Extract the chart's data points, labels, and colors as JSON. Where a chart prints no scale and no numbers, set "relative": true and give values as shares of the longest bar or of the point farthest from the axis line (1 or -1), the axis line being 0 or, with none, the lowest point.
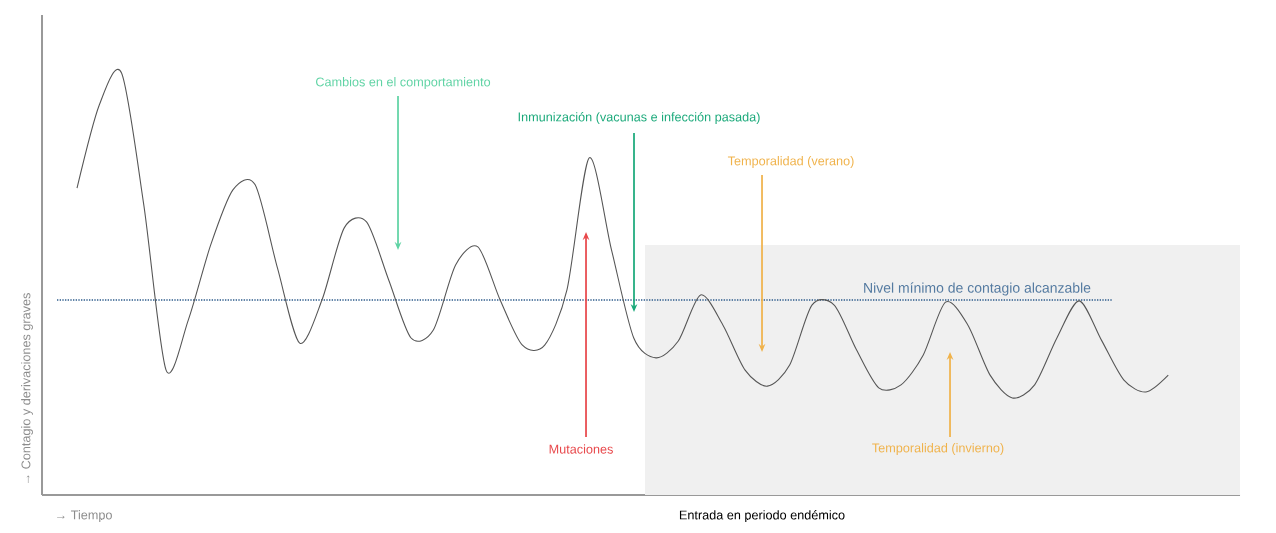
{
  "chart_data": {
    "type": "line",
    "relative": true,
    "categories": [
      null,
      null,
      null,
      null,
      null,
      null,
      null,
      null,
      null,
      null,
      null,
      null,
      null,
      null,
      null,
      null,
      null,
      null,
      null,
      null,
      null,
      null,
      null,
      null,
      null,
      null,
      null,
      null,
      null,
      null,
      null,
      null,
      null,
      null,
      null,
      null,
      null,
      null,
      null,
      null,
      null,
      null,
      null,
      null,
      null,
      null,
      null,
      null,
      null,
      null
    ],
    "values": [
      0.727,
      0.924,
      1.0,
      0.687,
      0.296,
      0.415,
      0.592,
      0.723,
      0.735,
      0.538,
      0.36,
      0.462,
      0.633,
      0.647,
      0.509,
      0.372,
      0.391,
      0.545,
      0.588,
      0.462,
      0.355,
      0.355,
      0.486,
      0.799,
      0.581,
      0.372,
      0.325,
      0.365,
      0.474,
      0.403,
      0.296,
      0.258,
      0.308,
      0.45,
      0.45,
      0.344,
      0.254,
      0.261,
      0.332,
      0.457,
      0.403,
      0.284,
      0.23,
      0.261,
      0.372,
      0.46,
      0.367,
      0.273,
      0.244,
      0.284
    ],
    "color": "#555555",
    "xlabel": "→ Tiempo",
    "ylabel": "→ Contagio y derivaciones graves",
    "annotations": [
      "Cambios en el comportamiento",
      "Inmunización (vacunas e infección pasada)",
      "Temporalidad (verano)",
      "Mutaciones",
      "Temporalidad (invierno)",
      "Entrada en periodo endémico"
    ],
    "ref_lines": [
      {
        "axis": "y",
        "value": 0.462,
        "label": "Nivel mínimo de contagio alcanzable",
        "color": "#2b5a8a",
        "line_style": "dotted"
      }
    ]
  }
}
